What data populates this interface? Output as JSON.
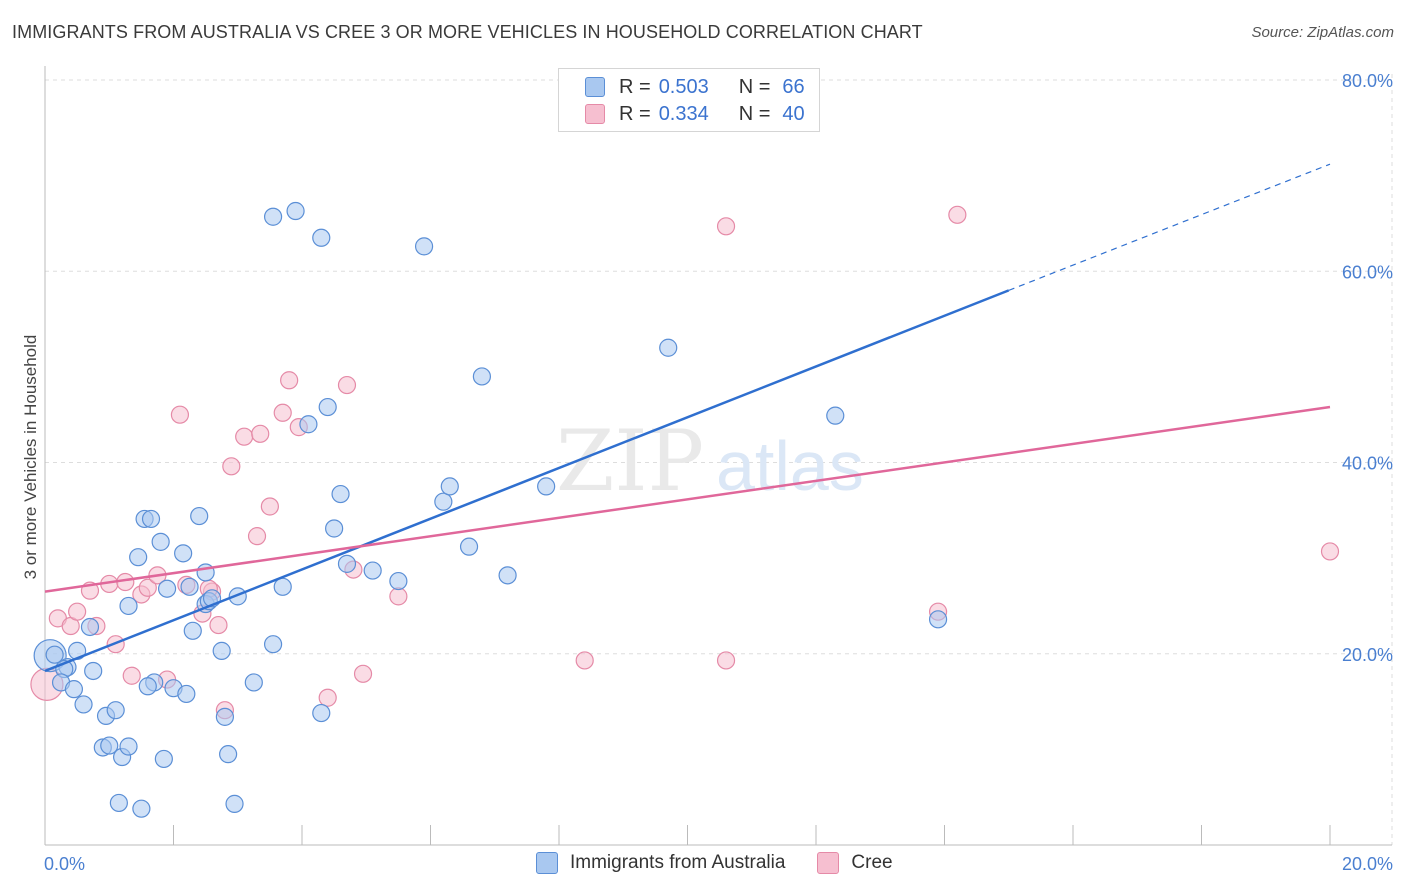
{
  "header": {
    "title": "IMMIGRANTS FROM AUSTRALIA VS CREE 3 OR MORE VEHICLES IN HOUSEHOLD CORRELATION CHART",
    "source": "Source: ZipAtlas.com"
  },
  "watermark": {
    "zip": "ZIP",
    "atlas": "atlas"
  },
  "legend_top": {
    "rows": [
      {
        "r_label": "R =",
        "r_value": "0.503",
        "n_label": "N =",
        "n_value": "66"
      },
      {
        "r_label": "R =",
        "r_value": "0.334",
        "n_label": "N =",
        "n_value": "40"
      }
    ]
  },
  "legend_bottom": {
    "series1": "Immigrants from Australia",
    "series2": "Cree"
  },
  "colors": {
    "blue_fill": "#a9c8f0",
    "blue_stroke": "#5b8fd6",
    "blue_line": "#2f6fcf",
    "pink_fill": "#f6bfd0",
    "pink_stroke": "#e58aa7",
    "pink_line": "#e0679a",
    "tick_text": "#4a7fd0",
    "grid": "#dddddd"
  },
  "chart_data": {
    "type": "scatter",
    "title": "IMMIGRANTS FROM AUSTRALIA VS CREE 3 OR MORE VEHICLES IN HOUSEHOLD CORRELATION CHART",
    "xlabel": "",
    "ylabel": "3 or more Vehicles in Household",
    "xlim": [
      0,
      20
    ],
    "ylim": [
      0,
      80
    ],
    "x_tick_labels": [
      {
        "value": 0,
        "label": "0.0%"
      },
      {
        "value": 20,
        "label": "20.0%"
      }
    ],
    "y_tick_labels": [
      {
        "value": 20,
        "label": "20.0%"
      },
      {
        "value": 40,
        "label": "40.0%"
      },
      {
        "value": 60,
        "label": "60.0%"
      },
      {
        "value": 80,
        "label": "80.0%"
      }
    ],
    "grid": true,
    "legend_position": "bottom-center",
    "series": [
      {
        "name": "Immigrants from Australia",
        "r": 0.503,
        "n": 66,
        "trend": {
          "x_start": 0,
          "y_start": 18.2,
          "x_end": 15.0,
          "y_end": 58.0,
          "dashed_to_x": 20,
          "dashed_to_y": 71.2
        },
        "points": [
          {
            "x": 0.08,
            "y": 19.8,
            "big": true
          },
          {
            "x": 0.15,
            "y": 19.9
          },
          {
            "x": 0.35,
            "y": 18.6
          },
          {
            "x": 0.3,
            "y": 18.4
          },
          {
            "x": 0.25,
            "y": 17.0
          },
          {
            "x": 0.5,
            "y": 20.3
          },
          {
            "x": 0.45,
            "y": 16.3
          },
          {
            "x": 0.75,
            "y": 18.2
          },
          {
            "x": 0.7,
            "y": 22.8
          },
          {
            "x": 0.6,
            "y": 14.7
          },
          {
            "x": 0.9,
            "y": 10.2
          },
          {
            "x": 0.95,
            "y": 13.5
          },
          {
            "x": 1.0,
            "y": 10.4
          },
          {
            "x": 1.1,
            "y": 14.1
          },
          {
            "x": 1.2,
            "y": 9.2
          },
          {
            "x": 1.3,
            "y": 10.3
          },
          {
            "x": 1.15,
            "y": 4.4
          },
          {
            "x": 1.5,
            "y": 3.8
          },
          {
            "x": 1.3,
            "y": 25.0
          },
          {
            "x": 1.45,
            "y": 30.1
          },
          {
            "x": 1.55,
            "y": 34.1
          },
          {
            "x": 1.65,
            "y": 34.1
          },
          {
            "x": 1.7,
            "y": 17.0
          },
          {
            "x": 1.85,
            "y": 9.0
          },
          {
            "x": 1.8,
            "y": 31.7
          },
          {
            "x": 1.9,
            "y": 26.8
          },
          {
            "x": 2.0,
            "y": 16.4
          },
          {
            "x": 2.15,
            "y": 30.5
          },
          {
            "x": 2.2,
            "y": 15.8
          },
          {
            "x": 2.25,
            "y": 27.0
          },
          {
            "x": 2.3,
            "y": 22.4
          },
          {
            "x": 2.4,
            "y": 34.4
          },
          {
            "x": 2.5,
            "y": 28.5
          },
          {
            "x": 2.5,
            "y": 25.2
          },
          {
            "x": 2.55,
            "y": 25.5
          },
          {
            "x": 2.75,
            "y": 20.3
          },
          {
            "x": 2.8,
            "y": 13.4
          },
          {
            "x": 2.85,
            "y": 9.5
          },
          {
            "x": 2.95,
            "y": 4.3
          },
          {
            "x": 3.0,
            "y": 26.0
          },
          {
            "x": 3.25,
            "y": 17.0
          },
          {
            "x": 3.55,
            "y": 21.0
          },
          {
            "x": 3.7,
            "y": 27.0
          },
          {
            "x": 3.55,
            "y": 65.7
          },
          {
            "x": 3.9,
            "y": 66.3
          },
          {
            "x": 4.1,
            "y": 44.0
          },
          {
            "x": 4.3,
            "y": 63.5
          },
          {
            "x": 4.4,
            "y": 45.8
          },
          {
            "x": 4.5,
            "y": 33.1
          },
          {
            "x": 4.6,
            "y": 36.7
          },
          {
            "x": 4.3,
            "y": 13.8
          },
          {
            "x": 4.7,
            "y": 29.4
          },
          {
            "x": 5.1,
            "y": 28.7
          },
          {
            "x": 5.5,
            "y": 27.6
          },
          {
            "x": 5.9,
            "y": 62.6
          },
          {
            "x": 6.2,
            "y": 35.9
          },
          {
            "x": 6.3,
            "y": 37.5
          },
          {
            "x": 6.6,
            "y": 31.2
          },
          {
            "x": 6.8,
            "y": 49.0
          },
          {
            "x": 7.2,
            "y": 28.2
          },
          {
            "x": 7.8,
            "y": 37.5
          },
          {
            "x": 9.7,
            "y": 52.0
          },
          {
            "x": 12.3,
            "y": 44.9
          },
          {
            "x": 13.9,
            "y": 23.6
          },
          {
            "x": 1.6,
            "y": 16.6
          },
          {
            "x": 2.6,
            "y": 25.8
          }
        ]
      },
      {
        "name": "Cree",
        "r": 0.334,
        "n": 40,
        "trend": {
          "x_start": 0,
          "y_start": 26.5,
          "x_end": 20,
          "y_end": 45.8
        },
        "points": [
          {
            "x": 0.03,
            "y": 16.8,
            "big": true
          },
          {
            "x": 0.2,
            "y": 23.7
          },
          {
            "x": 0.4,
            "y": 22.9
          },
          {
            "x": 0.5,
            "y": 24.4
          },
          {
            "x": 0.7,
            "y": 26.6
          },
          {
            "x": 0.8,
            "y": 22.9
          },
          {
            "x": 1.0,
            "y": 27.3
          },
          {
            "x": 1.1,
            "y": 21.0
          },
          {
            "x": 1.25,
            "y": 27.5
          },
          {
            "x": 1.35,
            "y": 17.7
          },
          {
            "x": 1.5,
            "y": 26.2
          },
          {
            "x": 1.6,
            "y": 26.9
          },
          {
            "x": 1.75,
            "y": 28.2
          },
          {
            "x": 1.9,
            "y": 17.3
          },
          {
            "x": 2.1,
            "y": 45.0
          },
          {
            "x": 2.2,
            "y": 27.2
          },
          {
            "x": 2.45,
            "y": 24.2
          },
          {
            "x": 2.6,
            "y": 26.5
          },
          {
            "x": 2.7,
            "y": 23.0
          },
          {
            "x": 2.8,
            "y": 14.1
          },
          {
            "x": 2.9,
            "y": 39.6
          },
          {
            "x": 3.1,
            "y": 42.7
          },
          {
            "x": 3.35,
            "y": 43.0
          },
          {
            "x": 3.3,
            "y": 32.3
          },
          {
            "x": 3.5,
            "y": 35.4
          },
          {
            "x": 3.7,
            "y": 45.2
          },
          {
            "x": 3.8,
            "y": 48.6
          },
          {
            "x": 3.95,
            "y": 43.7
          },
          {
            "x": 4.4,
            "y": 15.4
          },
          {
            "x": 4.7,
            "y": 48.1
          },
          {
            "x": 4.8,
            "y": 28.8
          },
          {
            "x": 4.95,
            "y": 17.9
          },
          {
            "x": 5.5,
            "y": 26.0
          },
          {
            "x": 8.4,
            "y": 19.3
          },
          {
            "x": 10.6,
            "y": 19.3
          },
          {
            "x": 10.6,
            "y": 64.7
          },
          {
            "x": 13.9,
            "y": 24.4
          },
          {
            "x": 14.2,
            "y": 65.9
          },
          {
            "x": 20.0,
            "y": 30.7
          },
          {
            "x": 2.55,
            "y": 26.8
          }
        ]
      }
    ]
  }
}
